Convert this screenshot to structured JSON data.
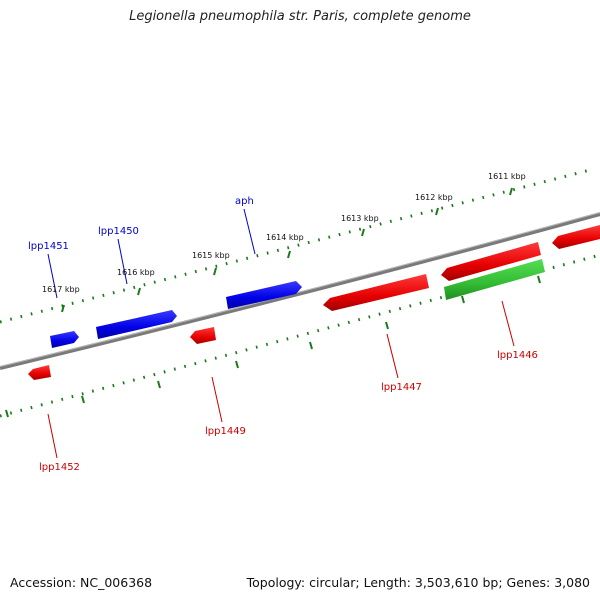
{
  "title": "Legionella pneumophila str. Paris, complete genome",
  "footer": {
    "accession": "Accession: NC_006368",
    "summary": "Topology: circular; Length: 3,503,610 bp; Genes: 3,080"
  },
  "colors": {
    "forward": "#0000ee",
    "reverse": "#ee0000",
    "rna": "#33cc33",
    "backbone": "#808080",
    "ticks": "#1a7a1a"
  },
  "scale_labels": [
    "1611 kbp",
    "1612 kbp",
    "1613 kbp",
    "1614 kbp",
    "1615 kbp",
    "1616 kbp",
    "1617 kbp"
  ],
  "gene_labels_forward": [
    "aph",
    "lpp1450",
    "lpp1451"
  ],
  "gene_labels_reverse": [
    "lpp1446",
    "lpp1447",
    "lpp1449",
    "lpp1452"
  ]
}
